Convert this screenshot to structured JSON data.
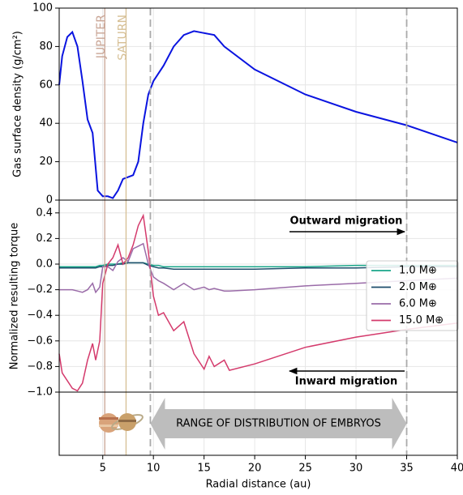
{
  "chart_data": [
    {
      "type": "line",
      "ylabel": "Gas surface density (g/cm²)",
      "x": [
        0.7,
        1,
        1.5,
        2,
        2.5,
        3,
        3.5,
        4,
        4.5,
        5,
        5.5,
        6,
        6.5,
        7,
        8,
        8.5,
        9,
        9.5,
        10,
        11,
        12,
        13,
        14,
        15,
        16,
        17,
        20,
        25,
        30,
        35,
        40
      ],
      "values": [
        60,
        75,
        85,
        87.5,
        80,
        62,
        42,
        35,
        5,
        2,
        2,
        1,
        5,
        11,
        13,
        20,
        40,
        55,
        62,
        70,
        80,
        86,
        88,
        87,
        86,
        80,
        68,
        55,
        46,
        39,
        30
      ],
      "color": "#0a14e0",
      "ylim": [
        0,
        100
      ],
      "yticks": [
        0,
        20,
        40,
        60,
        80,
        100
      ],
      "grid": true,
      "vlines": [
        {
          "x": 5.2,
          "label": "JUPITER",
          "color": "#c9a595"
        },
        {
          "x": 7.3,
          "label": "SATURN",
          "color": "#d6bf94"
        },
        {
          "x": 9.7,
          "color": "#aaaaaa",
          "dashed": true
        },
        {
          "x": 35,
          "color": "#aaaaaa",
          "dashed": true
        }
      ]
    },
    {
      "type": "line",
      "ylabel": "Normalized resulting torque",
      "x": [
        0.7,
        1,
        2,
        2.5,
        3,
        3.5,
        4,
        4.3,
        4.7,
        5,
        5.5,
        6,
        6.5,
        7,
        7.5,
        8,
        8.5,
        9,
        9.5,
        10,
        10.5,
        11,
        12,
        13,
        14,
        15,
        15.5,
        16,
        17,
        17.5,
        20,
        25,
        30,
        35,
        40
      ],
      "series": [
        {
          "name": "1.0 M⊕",
          "color": "#1aa68a",
          "values": [
            -0.02,
            -0.02,
            -0.02,
            -0.02,
            -0.02,
            -0.02,
            -0.02,
            -0.02,
            -0.01,
            -0.01,
            0,
            0,
            0,
            0.01,
            0.01,
            0.01,
            0.01,
            0.01,
            0,
            -0.01,
            -0.01,
            -0.02,
            -0.02,
            -0.02,
            -0.02,
            -0.02,
            -0.02,
            -0.02,
            -0.02,
            -0.02,
            -0.02,
            -0.02,
            -0.01,
            -0.01,
            -0.01
          ]
        },
        {
          "name": "2.0 M⊕",
          "color": "#1e4d6b",
          "values": [
            -0.03,
            -0.03,
            -0.03,
            -0.03,
            -0.03,
            -0.03,
            -0.03,
            -0.03,
            -0.02,
            -0.02,
            -0.01,
            -0.01,
            0,
            0,
            0.01,
            0.01,
            0.01,
            0.01,
            -0.01,
            -0.02,
            -0.03,
            -0.03,
            -0.04,
            -0.04,
            -0.04,
            -0.04,
            -0.04,
            -0.04,
            -0.04,
            -0.04,
            -0.04,
            -0.03,
            -0.03,
            -0.02,
            -0.02
          ]
        },
        {
          "name": "6.0 M⊕",
          "color": "#9a6ba8",
          "values": [
            -0.2,
            -0.2,
            -0.2,
            -0.21,
            -0.22,
            -0.2,
            -0.15,
            -0.22,
            -0.18,
            -0.02,
            -0.02,
            -0.05,
            0.02,
            0.05,
            0.02,
            0.12,
            0.14,
            0.16,
            0,
            -0.1,
            -0.13,
            -0.15,
            -0.2,
            -0.15,
            -0.2,
            -0.18,
            -0.2,
            -0.19,
            -0.21,
            -0.21,
            -0.2,
            -0.17,
            -0.15,
            -0.13,
            -0.11
          ]
        },
        {
          "name": "15.0 M⊕",
          "color": "#d43a6c",
          "values": [
            -0.7,
            -0.85,
            -0.97,
            -0.99,
            -0.93,
            -0.75,
            -0.62,
            -0.75,
            -0.6,
            -0.15,
            0,
            0.05,
            0.15,
            0,
            0.05,
            0.15,
            0.3,
            0.38,
            0.1,
            -0.25,
            -0.4,
            -0.38,
            -0.52,
            -0.45,
            -0.7,
            -0.82,
            -0.72,
            -0.8,
            -0.75,
            -0.83,
            -0.78,
            -0.65,
            -0.57,
            -0.51,
            -0.46
          ]
        }
      ],
      "ylim": [
        -1.0,
        0.5
      ],
      "yticks": [
        {
          "value": -1.0,
          "label": "−1.0"
        },
        {
          "value": -0.8,
          "label": "−0.8"
        },
        {
          "value": -0.6,
          "label": "−0.6"
        },
        {
          "value": -0.4,
          "label": "−0.4"
        },
        {
          "value": -0.2,
          "label": "−0.2"
        },
        {
          "value": 0.0,
          "label": "0.0"
        },
        {
          "value": 0.2,
          "label": "0.2"
        },
        {
          "value": 0.4,
          "label": "0.4"
        }
      ],
      "grid": true,
      "legend": "right",
      "annotations": [
        "Outward migration",
        "Inward migration"
      ]
    },
    {
      "type": "band",
      "label": "RANGE OF DISTRIBUTION OF EMBRYOS",
      "range": [
        9.7,
        35
      ],
      "color": "#bdbdbd",
      "xlabel": "Radial distance (au)",
      "xlim": [
        0.7,
        40
      ],
      "xticks": [
        5,
        10,
        15,
        20,
        25,
        30,
        35,
        40
      ]
    }
  ]
}
